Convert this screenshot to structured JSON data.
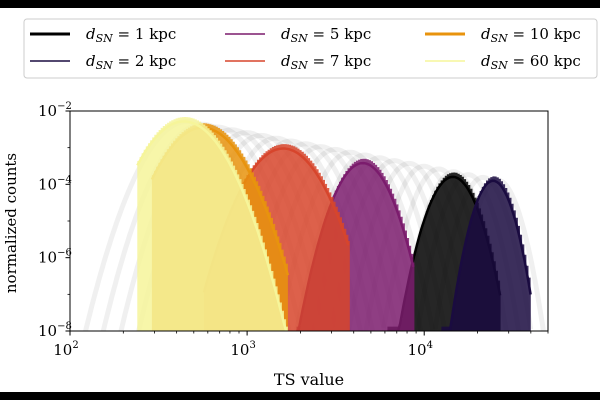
{
  "chart_data": {
    "type": "line",
    "xlabel": "TS value",
    "ylabel": "normalized counts",
    "xscale": "log",
    "yscale": "log",
    "xlim": [
      100,
      50000
    ],
    "ylim": [
      1e-08,
      0.01
    ],
    "x_ticks": [
      {
        "value": 100,
        "label": "10",
        "exp": "2"
      },
      {
        "value": 1000,
        "label": "10",
        "exp": "3"
      },
      {
        "value": 10000,
        "label": "10",
        "exp": "4"
      }
    ],
    "y_ticks": [
      {
        "value": 1e-08,
        "label": "10",
        "exp": "−8"
      },
      {
        "value": 1e-06,
        "label": "10",
        "exp": "−6"
      },
      {
        "value": 0.0001,
        "label": "10",
        "exp": "−4"
      },
      {
        "value": 0.01,
        "label": "10",
        "exp": "−2"
      }
    ],
    "legend": {
      "placement": "top",
      "columns": 3,
      "label_prefix": "d",
      "label_subscript": "SN",
      "label_suffix": " = "
    },
    "series": [
      {
        "name": "1 kpc",
        "color": "#000000",
        "peak_x": 14500,
        "peak_y": 0.00016,
        "width_dex": 0.105,
        "cutoff_low": 6200,
        "cutoff_high": 27000
      },
      {
        "name": "2 kpc",
        "color": "#1a0b40",
        "peak_x": 24500,
        "peak_y": 0.000125,
        "width_dex": 0.085,
        "cutoff_low": 12500,
        "cutoff_high": 40000
      },
      {
        "name": "5 kpc",
        "color": "#7b1c6d",
        "peak_x": 4500,
        "peak_y": 0.00038,
        "width_dex": 0.12,
        "cutoff_low": 1900,
        "cutoff_high": 8800
      },
      {
        "name": "7 kpc",
        "color": "#d7452c",
        "peak_x": 1600,
        "peak_y": 0.00095,
        "width_dex": 0.16,
        "cutoff_low": 570,
        "cutoff_high": 3800
      },
      {
        "name": "10 kpc",
        "color": "#e8930d",
        "peak_x": 560,
        "peak_y": 0.0035,
        "width_dex": 0.17,
        "cutoff_low": 290,
        "cutoff_high": 1700
      },
      {
        "name": "60 kpc",
        "color": "#f6f59a",
        "peak_x": 440,
        "peak_y": 0.0052,
        "width_dex": 0.17,
        "cutoff_low": 240,
        "cutoff_high": 1700
      }
    ]
  }
}
